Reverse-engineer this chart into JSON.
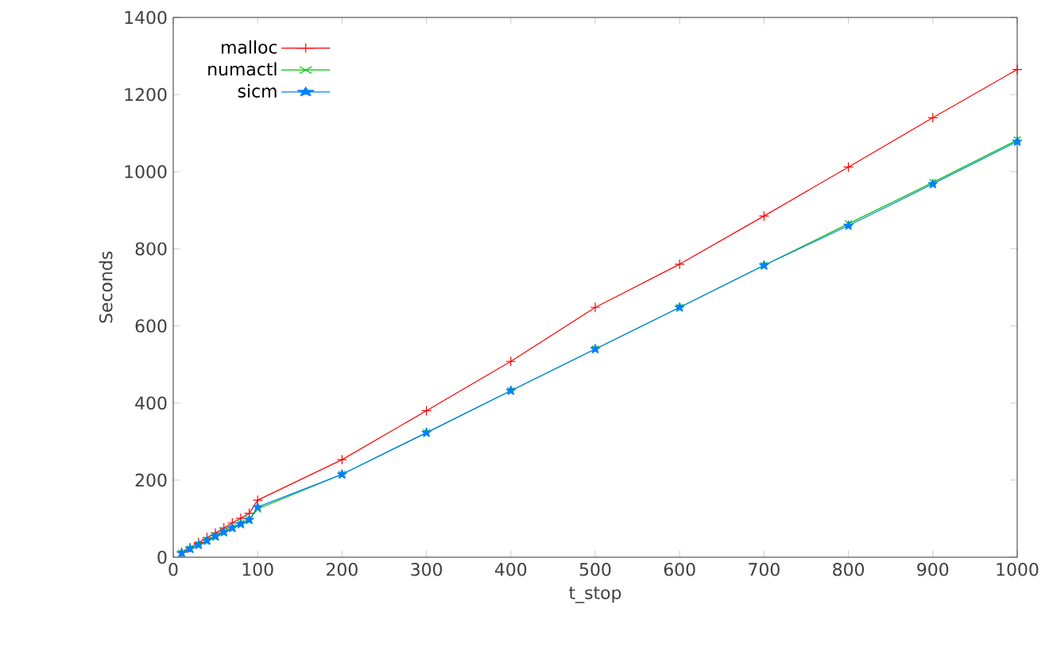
{
  "chart_data": {
    "type": "line",
    "xlabel": "t_stop",
    "ylabel": "Seconds",
    "xlim": [
      0,
      1000
    ],
    "ylim": [
      0,
      1400
    ],
    "xticks": [
      0,
      100,
      200,
      300,
      400,
      500,
      600,
      700,
      800,
      900,
      1000
    ],
    "yticks": [
      0,
      200,
      400,
      600,
      800,
      1000,
      1200,
      1400
    ],
    "legend": "top left",
    "grid": false,
    "x": [
      10,
      20,
      30,
      40,
      50,
      60,
      70,
      80,
      90,
      100,
      200,
      300,
      400,
      500,
      600,
      700,
      800,
      900,
      1000
    ],
    "series": [
      {
        "name": "malloc",
        "color": "#ff0000",
        "marker": "plus",
        "values": [
          13,
          25,
          38,
          51,
          63,
          76,
          89,
          101,
          114,
          148,
          253,
          380,
          508,
          648,
          760,
          885,
          1012,
          1140,
          1265
        ]
      },
      {
        "name": "numactl",
        "color": "#00c000",
        "marker": "cross",
        "values": [
          11,
          22,
          33,
          44,
          55,
          66,
          77,
          88,
          98,
          125,
          215,
          323,
          432,
          540,
          648,
          757,
          865,
          972,
          1082
        ]
      },
      {
        "name": "sicm",
        "color": "#0080ff",
        "marker": "star",
        "values": [
          11,
          22,
          32,
          43,
          54,
          65,
          76,
          86,
          97,
          130,
          215,
          323,
          432,
          540,
          648,
          757,
          860,
          968,
          1078
        ]
      }
    ]
  }
}
